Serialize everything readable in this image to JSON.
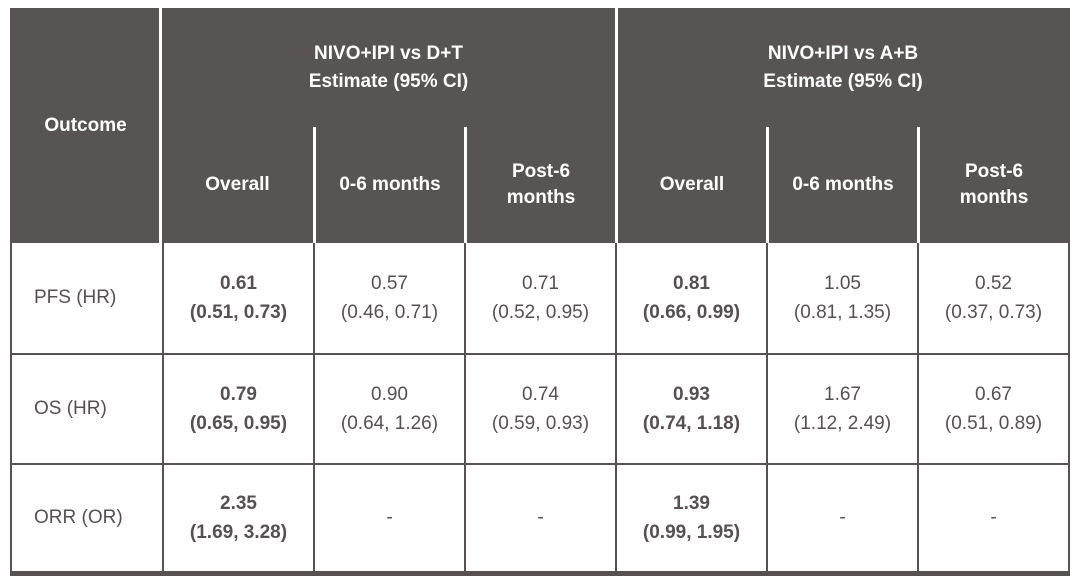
{
  "colors": {
    "header_bg": "#595454",
    "header_text": "#ffffff",
    "body_text": "#565051",
    "border": "#575152",
    "body_bg": "#ffffff"
  },
  "table": {
    "corner": "Outcome",
    "groups": [
      {
        "title": "NIVO+IPI vs D+T",
        "subtitle": "Estimate (95% CI)",
        "cols": [
          "Overall",
          "0-6 months",
          "Post-6\nmonths"
        ]
      },
      {
        "title": "NIVO+IPI vs A+B",
        "subtitle": "Estimate (95% CI)",
        "cols": [
          "Overall",
          "0-6 months",
          "Post-6\nmonths"
        ]
      }
    ],
    "rows": [
      {
        "label": "PFS (HR)",
        "cells": [
          {
            "est": "0.61",
            "ci": "(0.51, 0.73)"
          },
          {
            "est": "0.57",
            "ci": "(0.46, 0.71)"
          },
          {
            "est": "0.71",
            "ci": "(0.52, 0.95)"
          },
          {
            "est": "0.81",
            "ci": "(0.66, 0.99)"
          },
          {
            "est": "1.05",
            "ci": "(0.81, 1.35)"
          },
          {
            "est": "0.52",
            "ci": "(0.37, 0.73)"
          }
        ]
      },
      {
        "label": "OS (HR)",
        "cells": [
          {
            "est": "0.79",
            "ci": "(0.65, 0.95)"
          },
          {
            "est": "0.90",
            "ci": "(0.64, 1.26)"
          },
          {
            "est": "0.74",
            "ci": "(0.59, 0.93)"
          },
          {
            "est": "0.93",
            "ci": "(0.74, 1.18)"
          },
          {
            "est": "1.67",
            "ci": "(1.12, 2.49)"
          },
          {
            "est": "0.67",
            "ci": "(0.51, 0.89)"
          }
        ]
      },
      {
        "label": "ORR (OR)",
        "cells": [
          {
            "est": "2.35",
            "ci": "(1.69, 3.28)"
          },
          {
            "est": "-",
            "ci": ""
          },
          {
            "est": "-",
            "ci": ""
          },
          {
            "est": "1.39",
            "ci": "(0.99, 1.95)"
          },
          {
            "est": "-",
            "ci": ""
          },
          {
            "est": "-",
            "ci": ""
          }
        ]
      }
    ]
  }
}
